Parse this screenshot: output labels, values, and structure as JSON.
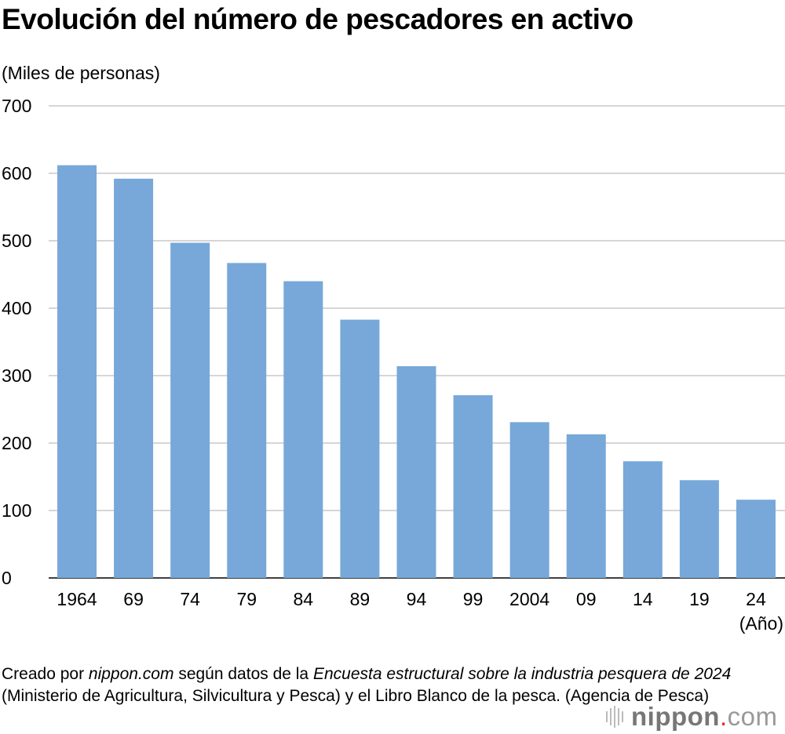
{
  "chart_data": {
    "type": "bar",
    "title": "Evolución del número de pescadores en activo",
    "ylabel": "(Miles de personas)",
    "xlabel": "(Año)",
    "categories": [
      "1964",
      "69",
      "74",
      "79",
      "84",
      "89",
      "94",
      "99",
      "2004",
      "09",
      "14",
      "19",
      "24"
    ],
    "values": [
      612,
      592,
      497,
      467,
      440,
      383,
      314,
      271,
      231,
      213,
      173,
      145,
      116
    ],
    "ylim": [
      0,
      700
    ],
    "yticks": [
      0,
      100,
      200,
      300,
      400,
      500,
      600,
      700
    ],
    "grid": true,
    "bar_color": "#77a8d9"
  },
  "source": {
    "p1": "Creado por ",
    "p2": "nippon.com",
    "p3": " según datos de la ",
    "p4": "Encuesta estructural sobre la industria pesquera de 2024",
    "p5": " (Ministerio de Agricultura, Silvicultura y Pesca) y el Libro Blanco de la pesca. (Agencia de Pesca)"
  },
  "logo": {
    "name": "nippon",
    "dot": ".",
    "tld": "com"
  }
}
